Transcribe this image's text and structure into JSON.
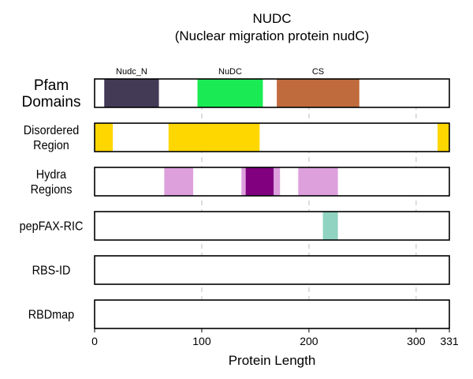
{
  "chart_data": {
    "type": "domain-track",
    "title": "NUDC",
    "subtitle": "(Nuclear migration protein nudC)",
    "xlabel": "Protein Length",
    "xlim": [
      0,
      331
    ],
    "xticks": [
      0,
      100,
      200,
      300,
      331
    ],
    "grid_x": [
      100,
      200,
      300
    ],
    "tracks": [
      {
        "label_lines": [
          "Pfam",
          "Domains"
        ],
        "emphasis": true,
        "segments": [
          {
            "start": 9,
            "end": 60,
            "color": "#433a56",
            "label": "Nudc_N"
          },
          {
            "start": 96,
            "end": 157,
            "color": "#1aeb55",
            "label": "NuDC"
          },
          {
            "start": 170,
            "end": 247,
            "color": "#c06b3e",
            "label": "CS"
          }
        ]
      },
      {
        "label_lines": [
          "Disordered",
          "Region"
        ],
        "segments": [
          {
            "start": 0,
            "end": 17,
            "color": "#ffd700"
          },
          {
            "start": 69,
            "end": 154,
            "color": "#ffd700"
          },
          {
            "start": 320,
            "end": 331,
            "color": "#ffd700"
          }
        ]
      },
      {
        "label_lines": [
          "Hydra",
          "Regions"
        ],
        "segments": [
          {
            "start": 65,
            "end": 92,
            "color": "#dda0dd"
          },
          {
            "start": 137,
            "end": 173,
            "color": "#dda0dd"
          },
          {
            "start": 190,
            "end": 227,
            "color": "#dda0dd"
          },
          {
            "start": 141,
            "end": 167,
            "color": "#800080"
          }
        ]
      },
      {
        "label_lines": [
          "pepFAX-RIC"
        ],
        "segments": [
          {
            "start": 213,
            "end": 227,
            "color": "#8fd3c0"
          }
        ]
      },
      {
        "label_lines": [
          "RBS-ID"
        ],
        "segments": []
      },
      {
        "label_lines": [
          "RBDmap"
        ],
        "segments": []
      }
    ]
  }
}
